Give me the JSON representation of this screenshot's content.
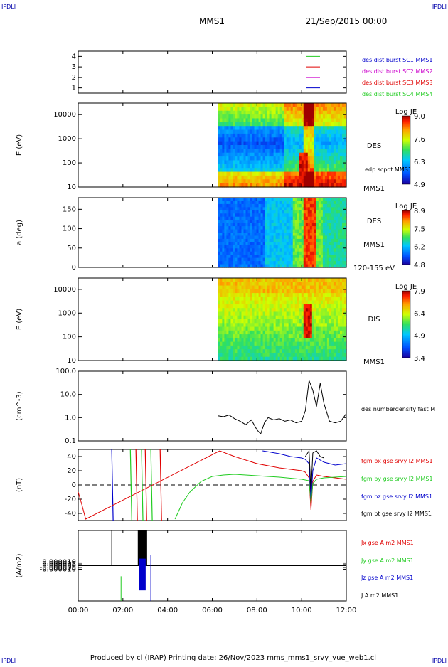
{
  "corner_mark": "IPDLI",
  "header": {
    "mission": "MMS1",
    "date": "21/Sep/2015 00:00"
  },
  "footer": "Produced by cl (IRAP)   Printing date: 26/Nov/2023   mms_mms1_srvy_vue_web1.cl",
  "time_axis": {
    "range": [
      "00:00",
      "12:00"
    ],
    "ticks": [
      "00:00",
      "02:00",
      "04:00",
      "06:00",
      "08:00",
      "10:00",
      "12:00"
    ]
  },
  "colors": {
    "red": "#e00000",
    "green": "#22cc22",
    "blue": "#0000cc",
    "magenta": "#cc00cc",
    "black": "#000000"
  },
  "chart_data": [
    {
      "id": "burst",
      "type": "line",
      "ylim": [
        0.5,
        4.5
      ],
      "yticks": [
        "1",
        "2",
        "3",
        "4"
      ],
      "legend": [
        {
          "label": "des dist burst SC1 MMS1",
          "color": "#0000cc"
        },
        {
          "label": "des dist burst SC2 MMS2",
          "color": "#cc00cc"
        },
        {
          "label": "des dist burst SC3 MMS3",
          "color": "#e00000"
        },
        {
          "label": "des dist burst SC4 MMS4",
          "color": "#22cc22"
        }
      ]
    },
    {
      "id": "des_energy",
      "type": "heatmap",
      "ylabel": "E (eV)",
      "yscale": "log",
      "ylim": [
        10,
        30000
      ],
      "yticks": [
        "10",
        "100",
        "1000",
        "10000"
      ],
      "side_labels": [
        "DES",
        "edp scpot MMS1",
        "MMS1"
      ],
      "colorbar": {
        "title": "Log JE",
        "ticks": [
          "9.0",
          "7.6",
          "6.3",
          "4.9"
        ],
        "range": [
          4.9,
          9.0
        ]
      },
      "data_start": "06:15"
    },
    {
      "id": "des_pitch",
      "type": "heatmap",
      "ylabel": "a (deg)",
      "ylim": [
        0,
        180
      ],
      "yticks": [
        "0",
        "50",
        "100",
        "150"
      ],
      "side_labels": [
        "DES",
        "MMS1",
        "120-155 eV"
      ],
      "colorbar": {
        "title": "Log JE",
        "ticks": [
          "8.9",
          "7.5",
          "6.2",
          "4.8"
        ],
        "range": [
          4.8,
          8.9
        ]
      },
      "data_start": "06:15"
    },
    {
      "id": "dis_energy",
      "type": "heatmap",
      "ylabel": "E (eV)",
      "yscale": "log",
      "ylim": [
        10,
        30000
      ],
      "yticks": [
        "10",
        "100",
        "1000",
        "10000"
      ],
      "side_labels": [
        "DIS",
        "MMS1"
      ],
      "colorbar": {
        "title": "Log JE",
        "ticks": [
          "7.9",
          "6.4",
          "4.9",
          "3.4"
        ],
        "range": [
          3.4,
          7.9
        ]
      },
      "data_start": "06:15"
    },
    {
      "id": "density",
      "type": "line",
      "ylabel": "(cm^-3)",
      "yscale": "log",
      "ylim": [
        0.1,
        100
      ],
      "yticks": [
        "0.1",
        "1.0",
        "10.0",
        "100.0"
      ],
      "series": [
        {
          "name": "des numberdensity fast M",
          "color": "#000000",
          "x": [
            "06:15",
            "06:30",
            "06:45",
            "07:00",
            "07:15",
            "07:30",
            "07:45",
            "08:00",
            "08:10",
            "08:20",
            "08:30",
            "08:45",
            "09:00",
            "09:15",
            "09:30",
            "09:45",
            "10:00",
            "10:10",
            "10:20",
            "10:30",
            "10:40",
            "10:50",
            "11:00",
            "11:15",
            "11:30",
            "11:45",
            "12:00"
          ],
          "y": [
            1.2,
            1.1,
            1.3,
            0.9,
            0.7,
            0.5,
            0.8,
            0.3,
            0.2,
            0.6,
            1.0,
            0.8,
            0.9,
            0.7,
            0.8,
            0.6,
            0.7,
            2.0,
            40,
            15,
            3.0,
            30,
            4.0,
            0.7,
            0.6,
            0.7,
            1.5
          ]
        }
      ]
    },
    {
      "id": "fgm",
      "type": "line",
      "ylabel": "(nT)",
      "ylim": [
        -50,
        50
      ],
      "yticks": [
        "-40",
        "-20",
        "0",
        "20",
        "40"
      ],
      "zero_line": "dashed",
      "series": [
        {
          "name": "fgm bx gse srvy l2 MMS1",
          "color": "#e00000",
          "x": [
            "00:00",
            "00:10",
            "00:20",
            "06:20",
            "07:00",
            "08:00",
            "09:00",
            "10:00",
            "10:10",
            "10:20",
            "10:25",
            "10:30",
            "10:40",
            "11:00",
            "11:30",
            "12:00"
          ],
          "y": [
            -10,
            -28,
            -48,
            48,
            40,
            30,
            24,
            20,
            18,
            10,
            -35,
            5,
            14,
            12,
            10,
            8
          ]
        },
        {
          "name": "fgm by gse srvy l2 MMS1",
          "color": "#22cc22",
          "x": [
            "04:20",
            "04:40",
            "05:00",
            "05:30",
            "06:00",
            "06:30",
            "07:00",
            "08:00",
            "09:00",
            "10:00",
            "10:20",
            "10:25",
            "10:30",
            "10:40",
            "11:00",
            "12:00"
          ],
          "y": [
            -48,
            -25,
            -10,
            5,
            12,
            14,
            15,
            13,
            11,
            8,
            6,
            -25,
            2,
            8,
            10,
            12
          ]
        },
        {
          "name": "fgm bz gse srvy l2 MMS1",
          "color": "#0000cc",
          "x": [
            "08:15",
            "09:00",
            "09:30",
            "10:00",
            "10:10",
            "10:20",
            "10:25",
            "10:30",
            "10:40",
            "11:00",
            "11:30",
            "12:00"
          ],
          "y": [
            48,
            44,
            40,
            38,
            36,
            30,
            -20,
            20,
            38,
            32,
            28,
            30
          ]
        },
        {
          "name": "fgm bt gse srvy l2 MMS1",
          "color": "#000000",
          "x": [
            "10:10",
            "10:20",
            "10:25",
            "10:30",
            "10:40",
            "10:50",
            "11:00"
          ],
          "y": [
            40,
            48,
            -10,
            45,
            48,
            40,
            38
          ]
        }
      ]
    },
    {
      "id": "current",
      "type": "line",
      "ylabel": "(A/m2)",
      "ylim": [
        -0.0001,
        0.0001
      ],
      "yticks": [
        "-0.000010",
        "-0.000005",
        "0.000000",
        "0.000005",
        "0.000010"
      ],
      "series": [
        {
          "name": "Jx gse A m2 MMS1",
          "color": "#e00000",
          "x": [
            "00:00",
            "12:00"
          ],
          "y": [
            0,
            0
          ]
        },
        {
          "name": "Jy gse A m2 MMS1",
          "color": "#22cc22",
          "x": [
            "00:00",
            "12:00"
          ],
          "y": [
            0,
            0
          ]
        },
        {
          "name": "Jz gse A m2 MMS1",
          "color": "#0000cc",
          "x": [
            "00:00",
            "12:00"
          ],
          "y": [
            0,
            0
          ]
        },
        {
          "name": "J A m2 MMS1",
          "color": "#000000",
          "x": [
            "00:00",
            "12:00"
          ],
          "y": [
            0,
            0
          ]
        }
      ]
    }
  ]
}
